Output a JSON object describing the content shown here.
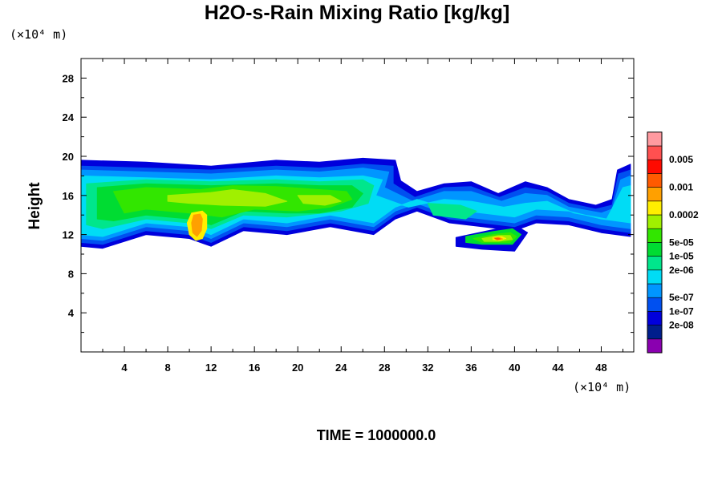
{
  "chart_data": {
    "type": "heatmap",
    "title": "H2O-s-Rain Mixing Ratio [kg/kg]",
    "ylabel": "Height",
    "xlabel": "",
    "x_unit": "(×10⁴ m)",
    "y_unit": "(×10⁴ m)",
    "footer": "TIME = 1000000.0",
    "xlim": [
      0,
      51
    ],
    "ylim": [
      0,
      30
    ],
    "x_ticks": [
      {
        "value": 4,
        "label": "4"
      },
      {
        "value": 8,
        "label": "8"
      },
      {
        "value": 12,
        "label": "12"
      },
      {
        "value": 16,
        "label": "16"
      },
      {
        "value": 20,
        "label": "20"
      },
      {
        "value": 24,
        "label": "24"
      },
      {
        "value": 28,
        "label": "28"
      },
      {
        "value": 32,
        "label": "32"
      },
      {
        "value": 36,
        "label": "36"
      },
      {
        "value": 40,
        "label": "40"
      },
      {
        "value": 44,
        "label": "44"
      },
      {
        "value": 48,
        "label": "48"
      }
    ],
    "y_ticks": [
      {
        "value": 4,
        "label": "4"
      },
      {
        "value": 8,
        "label": "8"
      },
      {
        "value": 12,
        "label": "12"
      },
      {
        "value": 16,
        "label": "16"
      },
      {
        "value": 20,
        "label": "20"
      },
      {
        "value": 24,
        "label": "24"
      },
      {
        "value": 28,
        "label": "28"
      }
    ],
    "colorbar": {
      "colors": [
        "#8a00b0",
        "#001e8c",
        "#0000dc",
        "#0050f0",
        "#0096ff",
        "#00dcf5",
        "#00e68c",
        "#00dc32",
        "#32e600",
        "#a0f000",
        "#ffee00",
        "#ffa000",
        "#ff5a00",
        "#ff0a00",
        "#ff5050",
        "#ff9aa0"
      ],
      "labels": [
        {
          "after_band": 2,
          "text": "2e-08"
        },
        {
          "after_band": 3,
          "text": "1e-07"
        },
        {
          "after_band": 4,
          "text": "5e-07"
        },
        {
          "after_band": 6,
          "text": "2e-06"
        },
        {
          "after_band": 7,
          "text": "1e-05"
        },
        {
          "after_band": 8,
          "text": "5e-05"
        },
        {
          "after_band": 10,
          "text": "0.0002"
        },
        {
          "after_band": 12,
          "text": "0.001"
        },
        {
          "after_band": 14,
          "text": "0.005"
        }
      ]
    },
    "field_regions": [
      {
        "level": 2,
        "points": [
          [
            0.0,
            19.6
          ],
          [
            6.0,
            19.4
          ],
          [
            12.0,
            19.0
          ],
          [
            18.0,
            19.6
          ],
          [
            22.0,
            19.4
          ],
          [
            26.0,
            19.8
          ],
          [
            29.0,
            19.6
          ],
          [
            29.5,
            17.5
          ],
          [
            31.0,
            16.4
          ],
          [
            33.5,
            17.2
          ],
          [
            36.0,
            17.4
          ],
          [
            38.5,
            16.2
          ],
          [
            41.0,
            17.4
          ],
          [
            43.0,
            16.8
          ],
          [
            45.0,
            15.6
          ],
          [
            47.5,
            15.0
          ],
          [
            49.0,
            15.6
          ],
          [
            49.5,
            18.6
          ],
          [
            50.7,
            19.2
          ],
          [
            50.7,
            11.8
          ],
          [
            48.0,
            12.2
          ],
          [
            45.0,
            13.0
          ],
          [
            42.0,
            13.2
          ],
          [
            40.0,
            12.4
          ],
          [
            37.0,
            12.8
          ],
          [
            34.0,
            13.2
          ],
          [
            31.0,
            14.4
          ],
          [
            29.0,
            13.6
          ],
          [
            27.0,
            12.0
          ],
          [
            23.0,
            12.8
          ],
          [
            19.0,
            12.0
          ],
          [
            15.0,
            12.4
          ],
          [
            12.0,
            10.8
          ],
          [
            10.0,
            11.6
          ],
          [
            6.0,
            12.0
          ],
          [
            2.0,
            10.6
          ],
          [
            0.0,
            10.8
          ]
        ]
      },
      {
        "level": 2,
        "points": [
          [
            34.6,
            11.7
          ],
          [
            38.0,
            12.5
          ],
          [
            40.0,
            13.0
          ],
          [
            41.2,
            12.2
          ],
          [
            40.0,
            10.3
          ],
          [
            37.0,
            10.5
          ],
          [
            34.6,
            10.8
          ]
        ]
      },
      {
        "level": 3,
        "points": [
          [
            0.0,
            19.0
          ],
          [
            6.0,
            18.8
          ],
          [
            12.0,
            18.6
          ],
          [
            18.0,
            19.0
          ],
          [
            22.0,
            18.8
          ],
          [
            26.0,
            19.2
          ],
          [
            28.8,
            19.0
          ],
          [
            28.8,
            17.2
          ],
          [
            30.8,
            15.8
          ],
          [
            33.5,
            16.8
          ],
          [
            36.0,
            16.9
          ],
          [
            38.6,
            15.8
          ],
          [
            41.0,
            16.8
          ],
          [
            43.0,
            16.4
          ],
          [
            45.0,
            15.2
          ],
          [
            47.5,
            14.6
          ],
          [
            49.0,
            15.0
          ],
          [
            49.6,
            18.2
          ],
          [
            50.7,
            18.6
          ],
          [
            50.7,
            12.2
          ],
          [
            48.0,
            12.6
          ],
          [
            45.0,
            13.4
          ],
          [
            42.0,
            13.6
          ],
          [
            40.0,
            12.8
          ],
          [
            37.0,
            13.2
          ],
          [
            34.0,
            13.6
          ],
          [
            31.0,
            14.8
          ],
          [
            29.0,
            14.0
          ],
          [
            27.0,
            12.4
          ],
          [
            23.0,
            13.2
          ],
          [
            19.0,
            12.4
          ],
          [
            15.0,
            12.8
          ],
          [
            12.0,
            11.2
          ],
          [
            10.0,
            12.0
          ],
          [
            6.0,
            12.4
          ],
          [
            2.0,
            11.0
          ],
          [
            0.0,
            11.2
          ]
        ]
      },
      {
        "level": 4,
        "points": [
          [
            0.0,
            18.6
          ],
          [
            6.0,
            18.4
          ],
          [
            12.0,
            18.2
          ],
          [
            18.0,
            18.6
          ],
          [
            22.0,
            18.4
          ],
          [
            26.0,
            18.8
          ],
          [
            28.4,
            18.4
          ],
          [
            28.0,
            16.8
          ],
          [
            30.6,
            15.4
          ],
          [
            33.5,
            16.4
          ],
          [
            36.0,
            16.4
          ],
          [
            38.8,
            15.4
          ],
          [
            41.0,
            16.2
          ],
          [
            43.0,
            16.0
          ],
          [
            45.0,
            14.8
          ],
          [
            48.0,
            14.2
          ],
          [
            49.0,
            14.6
          ],
          [
            49.8,
            17.6
          ],
          [
            50.7,
            18.0
          ],
          [
            50.7,
            12.6
          ],
          [
            48.0,
            13.0
          ],
          [
            45.0,
            13.8
          ],
          [
            42.0,
            14.0
          ],
          [
            40.0,
            13.2
          ],
          [
            37.0,
            13.6
          ],
          [
            34.0,
            14.0
          ],
          [
            31.0,
            15.2
          ],
          [
            29.0,
            14.4
          ],
          [
            27.0,
            12.8
          ],
          [
            23.0,
            13.6
          ],
          [
            19.0,
            12.8
          ],
          [
            15.0,
            13.2
          ],
          [
            12.0,
            11.6
          ],
          [
            10.0,
            12.4
          ],
          [
            6.0,
            12.8
          ],
          [
            2.0,
            11.4
          ],
          [
            0.0,
            11.6
          ]
        ]
      },
      {
        "level": 5,
        "points": [
          [
            0.0,
            18.0
          ],
          [
            6.0,
            17.8
          ],
          [
            12.0,
            17.6
          ],
          [
            18.0,
            18.0
          ],
          [
            22.0,
            17.8
          ],
          [
            26.0,
            18.0
          ],
          [
            27.8,
            17.6
          ],
          [
            27.2,
            16.0
          ],
          [
            30.2,
            14.8
          ],
          [
            33.5,
            15.6
          ],
          [
            36.0,
            15.4
          ],
          [
            39.0,
            14.8
          ],
          [
            41.0,
            15.2
          ],
          [
            43.0,
            15.4
          ],
          [
            45.5,
            14.2
          ],
          [
            48.5,
            13.6
          ],
          [
            50.0,
            16.8
          ],
          [
            50.7,
            17.0
          ],
          [
            50.7,
            13.2
          ],
          [
            48.0,
            13.6
          ],
          [
            45.0,
            14.4
          ],
          [
            42.0,
            14.6
          ],
          [
            40.0,
            13.8
          ],
          [
            37.0,
            14.2
          ],
          [
            34.0,
            14.6
          ],
          [
            31.0,
            15.6
          ],
          [
            29.0,
            14.8
          ],
          [
            27.0,
            13.2
          ],
          [
            23.0,
            14.0
          ],
          [
            19.0,
            13.2
          ],
          [
            15.0,
            13.6
          ],
          [
            12.0,
            12.0
          ],
          [
            10.0,
            12.8
          ],
          [
            6.0,
            13.2
          ],
          [
            2.0,
            11.8
          ],
          [
            0.0,
            12.0
          ]
        ]
      },
      {
        "level": 6,
        "points": [
          [
            0.5,
            17.2
          ],
          [
            6.0,
            17.6
          ],
          [
            12.0,
            17.4
          ],
          [
            18.0,
            17.6
          ],
          [
            22.0,
            17.4
          ],
          [
            26.0,
            17.6
          ],
          [
            27.0,
            17.0
          ],
          [
            26.5,
            15.2
          ],
          [
            24.0,
            14.4
          ],
          [
            19.0,
            13.8
          ],
          [
            15.0,
            14.0
          ],
          [
            12.0,
            12.6
          ],
          [
            10.0,
            13.2
          ],
          [
            6.0,
            13.6
          ],
          [
            2.0,
            12.6
          ],
          [
            0.5,
            13.0
          ]
        ]
      },
      {
        "level": 6,
        "points": [
          [
            32.0,
            15.2
          ],
          [
            35.0,
            15.0
          ],
          [
            36.5,
            14.4
          ],
          [
            35.5,
            13.6
          ],
          [
            32.5,
            14.0
          ]
        ]
      },
      {
        "level": 7,
        "points": [
          [
            1.5,
            16.8
          ],
          [
            6.0,
            17.2
          ],
          [
            12.0,
            17.0
          ],
          [
            18.0,
            17.2
          ],
          [
            22.0,
            17.0
          ],
          [
            25.0,
            17.0
          ],
          [
            26.0,
            16.2
          ],
          [
            25.0,
            14.8
          ],
          [
            22.0,
            14.2
          ],
          [
            19.0,
            14.2
          ],
          [
            15.0,
            14.4
          ],
          [
            12.0,
            13.0
          ],
          [
            10.0,
            13.6
          ],
          [
            6.0,
            14.0
          ],
          [
            3.0,
            13.4
          ],
          [
            1.5,
            13.6
          ]
        ]
      },
      {
        "level": 7,
        "points": [
          [
            35.5,
            11.8
          ],
          [
            38.0,
            12.3
          ],
          [
            39.8,
            12.6
          ],
          [
            40.6,
            12.0
          ],
          [
            39.8,
            11.0
          ],
          [
            37.0,
            11.0
          ],
          [
            35.5,
            11.2
          ]
        ]
      },
      {
        "level": 8,
        "points": [
          [
            3.0,
            16.4
          ],
          [
            6.0,
            16.8
          ],
          [
            11.0,
            16.6
          ],
          [
            14.0,
            17.0
          ],
          [
            18.0,
            16.9
          ],
          [
            22.0,
            16.6
          ],
          [
            24.5,
            16.4
          ],
          [
            25.0,
            15.6
          ],
          [
            23.0,
            14.8
          ],
          [
            20.0,
            14.4
          ],
          [
            16.0,
            14.6
          ],
          [
            13.0,
            13.8
          ],
          [
            10.0,
            14.2
          ],
          [
            6.0,
            14.6
          ],
          [
            4.0,
            14.2
          ]
        ]
      },
      {
        "level": 8,
        "points": [
          [
            36.2,
            11.6
          ],
          [
            38.0,
            12.0
          ],
          [
            39.6,
            12.2
          ],
          [
            40.2,
            11.8
          ],
          [
            39.6,
            11.2
          ],
          [
            37.0,
            11.2
          ]
        ]
      },
      {
        "level": 9,
        "points": [
          [
            8.0,
            16.0
          ],
          [
            12.0,
            16.3
          ],
          [
            14.0,
            16.6
          ],
          [
            17.0,
            16.2
          ],
          [
            19.0,
            15.4
          ],
          [
            17.0,
            14.9
          ],
          [
            13.0,
            15.0
          ],
          [
            10.0,
            15.2
          ],
          [
            8.0,
            15.4
          ]
        ]
      },
      {
        "level": 9,
        "points": [
          [
            20.0,
            16.0
          ],
          [
            23.0,
            16.0
          ],
          [
            24.0,
            15.4
          ],
          [
            22.5,
            15.0
          ],
          [
            20.5,
            15.2
          ]
        ]
      },
      {
        "level": 9,
        "points": [
          [
            37.0,
            11.6
          ],
          [
            38.5,
            11.9
          ],
          [
            39.6,
            11.9
          ],
          [
            39.8,
            11.5
          ],
          [
            38.5,
            11.3
          ],
          [
            37.2,
            11.3
          ]
        ]
      },
      {
        "level": 10,
        "points": [
          [
            10.2,
            14.2
          ],
          [
            11.2,
            14.4
          ],
          [
            11.6,
            14.0
          ],
          [
            11.6,
            12.6
          ],
          [
            11.2,
            11.6
          ],
          [
            10.6,
            11.4
          ],
          [
            10.0,
            12.0
          ],
          [
            9.8,
            13.2
          ]
        ]
      },
      {
        "level": 10,
        "points": [
          [
            38.0,
            11.7
          ],
          [
            38.8,
            11.8
          ],
          [
            39.2,
            11.6
          ],
          [
            38.6,
            11.4
          ],
          [
            38.0,
            11.5
          ]
        ]
      },
      {
        "level": 11,
        "points": [
          [
            10.4,
            14.0
          ],
          [
            11.0,
            14.1
          ],
          [
            11.2,
            13.6
          ],
          [
            11.1,
            12.4
          ],
          [
            10.7,
            11.8
          ],
          [
            10.3,
            12.2
          ],
          [
            10.2,
            13.2
          ]
        ]
      },
      {
        "level": 11,
        "points": [
          [
            38.1,
            11.65
          ],
          [
            38.6,
            11.7
          ],
          [
            38.9,
            11.55
          ],
          [
            38.4,
            11.45
          ]
        ]
      },
      {
        "level": 12,
        "points": [
          [
            38.2,
            11.6
          ],
          [
            38.5,
            11.65
          ],
          [
            38.7,
            11.55
          ],
          [
            38.4,
            11.5
          ]
        ]
      }
    ]
  }
}
